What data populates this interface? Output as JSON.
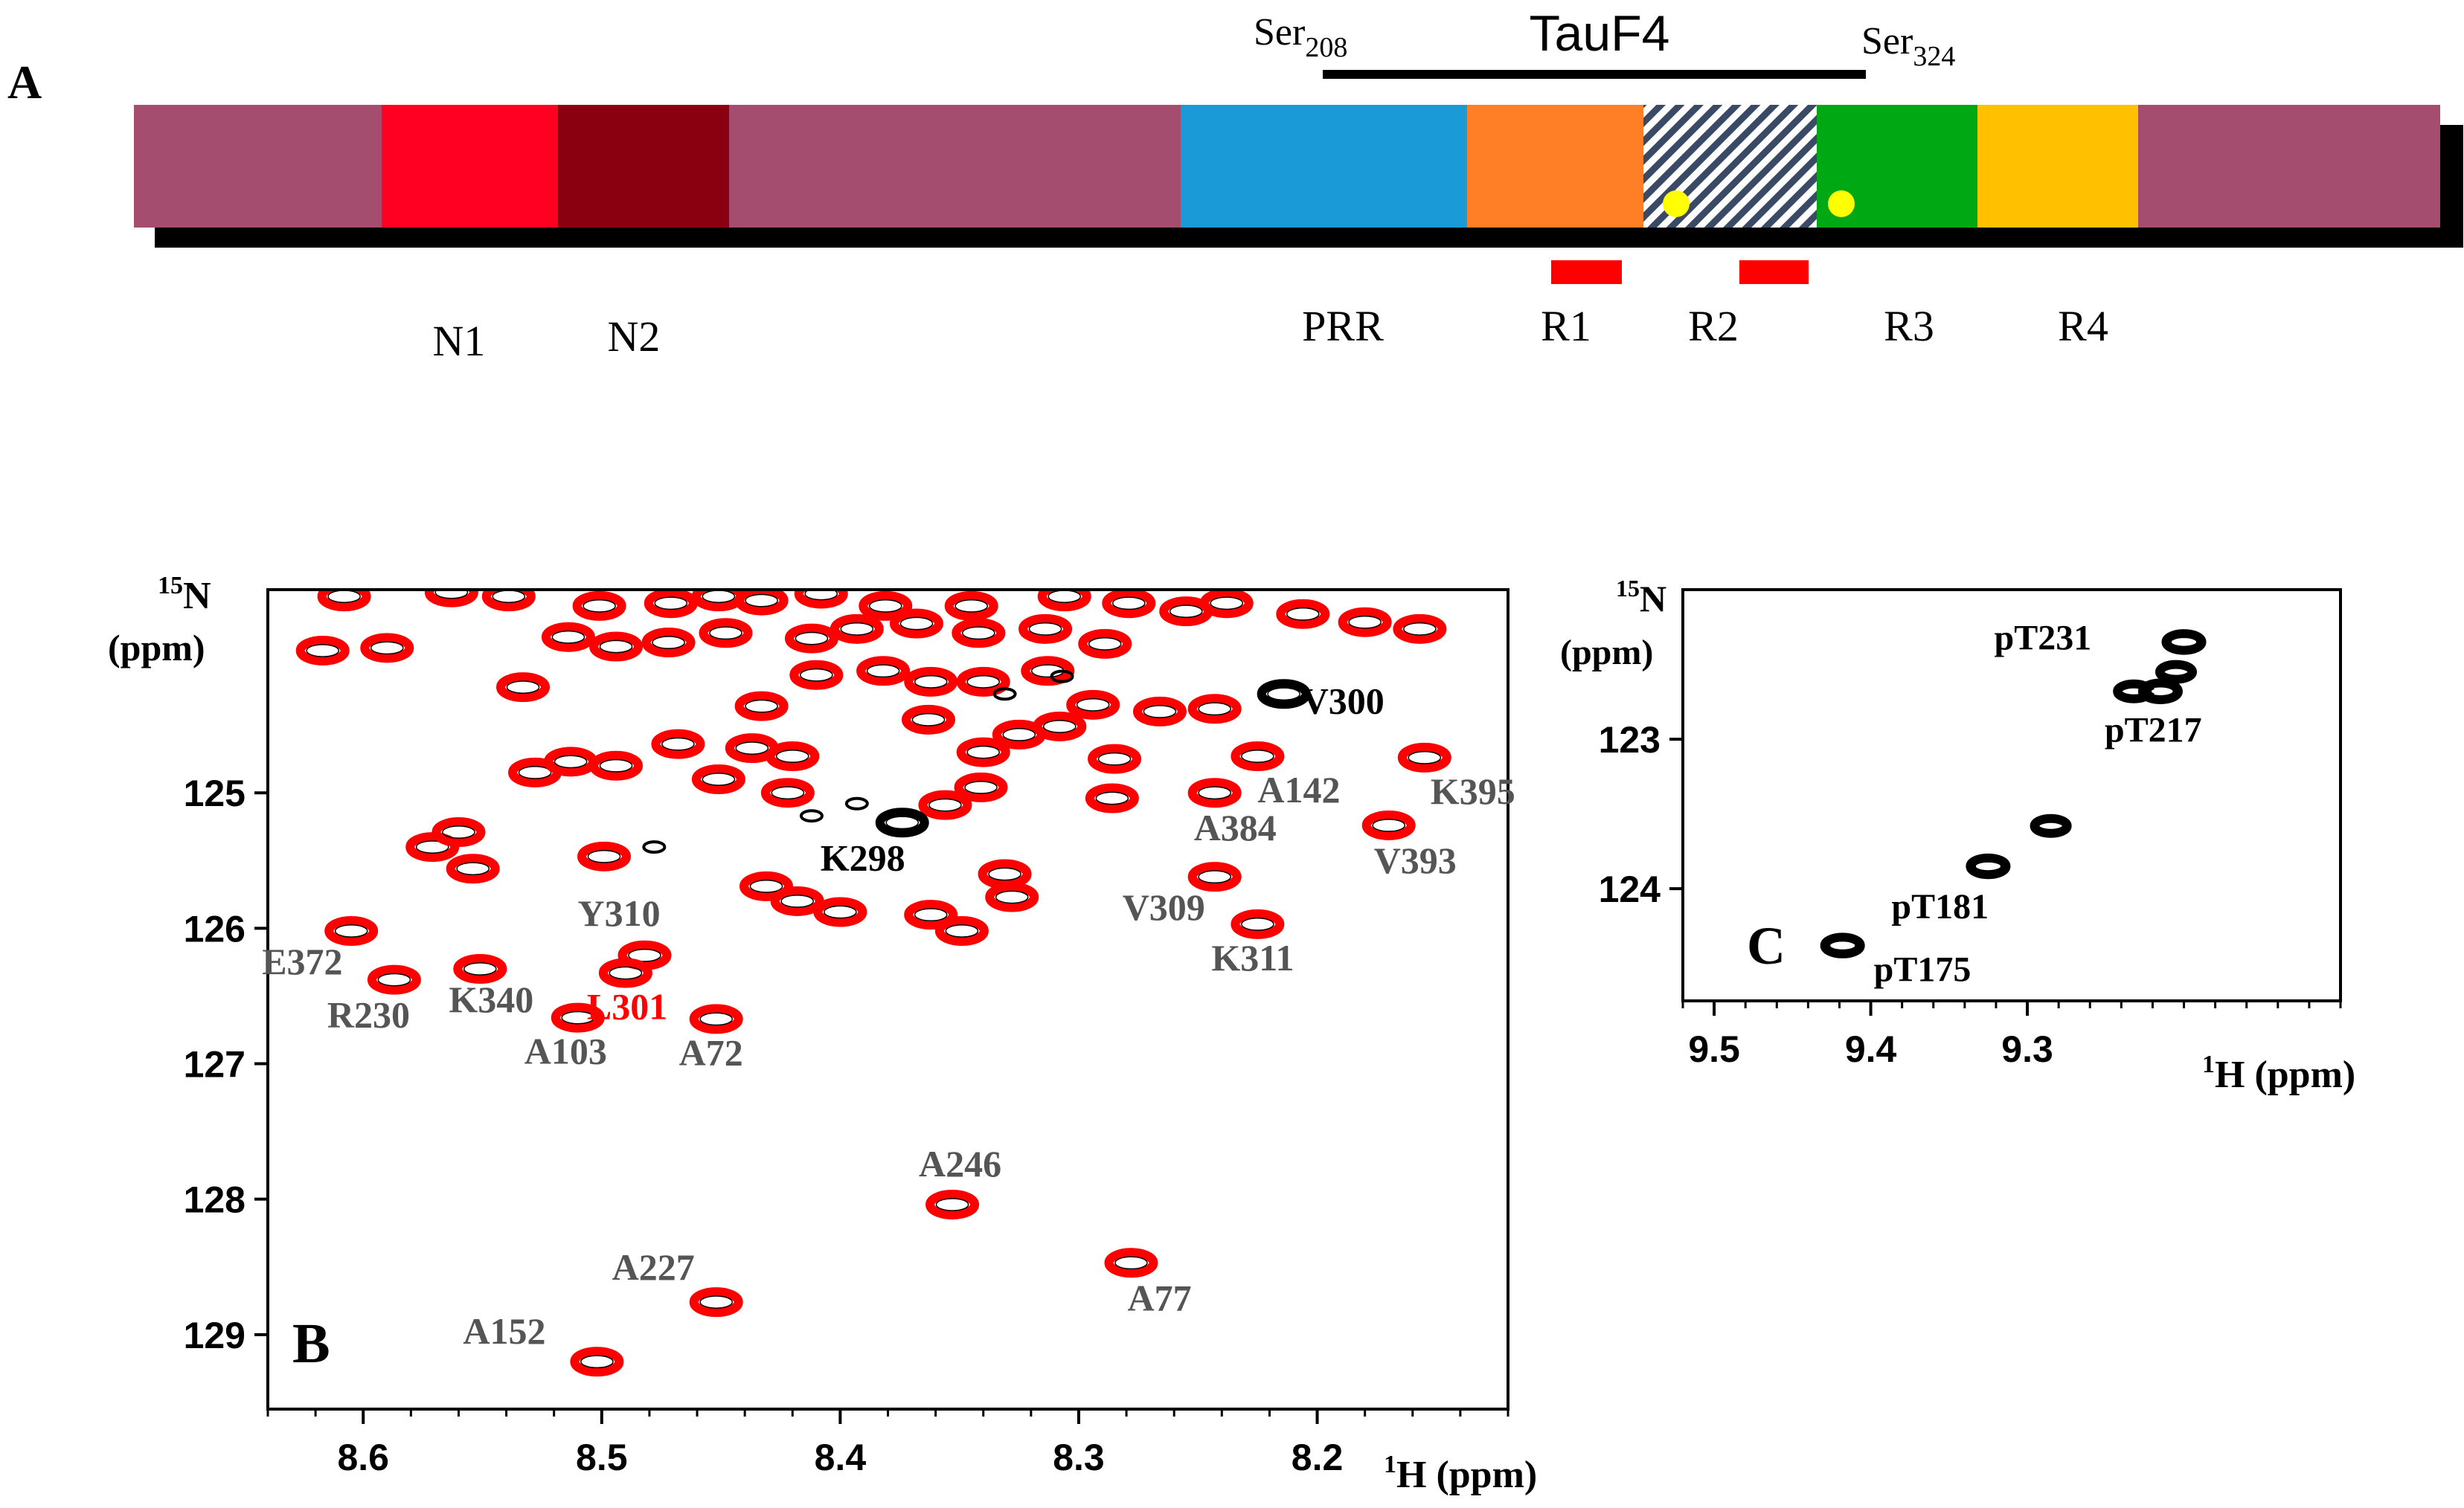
{
  "panel_a": {
    "panel_label": "A",
    "construct_label": "TauF4",
    "start_marker": {
      "base": "Ser",
      "sub": "208"
    },
    "end_marker": {
      "base": "Ser",
      "sub": "324"
    },
    "bar_color": "#a44d6f",
    "domains": [
      {
        "id": "N1",
        "label": "N1",
        "color": "#ff0022"
      },
      {
        "id": "N2",
        "label": "N2",
        "color": "#8b0011"
      },
      {
        "id": "PRR",
        "label": "PRR",
        "color": "#1a9ad6"
      },
      {
        "id": "R1",
        "label": "R1",
        "color": "#ff7f27"
      },
      {
        "id": "R2",
        "label": "R2",
        "color": "hatched"
      },
      {
        "id": "R3",
        "label": "R3",
        "color": "#00a814"
      },
      {
        "id": "R4",
        "label": "R4",
        "color": "#ffc000"
      }
    ],
    "motif_marker_color": "#ff0000",
    "site_dot_color": "#ffff00"
  },
  "chart_data": [
    {
      "type": "scatter",
      "panel_label": "B",
      "title": "",
      "xlabel": {
        "sup": "1",
        "base": "H (ppm)"
      },
      "ylabel": {
        "sup": "15",
        "base": "N",
        "unit": "(ppm)"
      },
      "xlim": [
        8.64,
        8.12
      ],
      "ylim": [
        123.5,
        129.55
      ],
      "x_ticks": [
        8.6,
        8.5,
        8.4,
        8.3,
        8.2
      ],
      "y_ticks": [
        125,
        126,
        127,
        128,
        129
      ],
      "grid": false,
      "series": [
        {
          "color": "#ff0000"
        },
        {
          "color": "#000000"
        }
      ],
      "peaks": [
        {
          "label": "V300",
          "x": 8.214,
          "y": 124.27,
          "color": "#000000",
          "label_color": "#000000"
        },
        {
          "label": "K298",
          "x": 8.374,
          "y": 125.22,
          "color": "#000000",
          "label_color": "#000000"
        },
        {
          "label": "A142",
          "x": 8.225,
          "y": 124.73,
          "color": "#ff0000",
          "label_color": "#555555"
        },
        {
          "label": "K395",
          "x": 8.155,
          "y": 124.74,
          "color": "#ff0000",
          "label_color": "#555555"
        },
        {
          "label": "A384",
          "x": 8.243,
          "y": 125.0,
          "color": "#ff0000",
          "label_color": "#555555"
        },
        {
          "label": "V393",
          "x": 8.17,
          "y": 125.24,
          "color": "#ff0000",
          "label_color": "#555555"
        },
        {
          "label": "V309",
          "x": 8.243,
          "y": 125.62,
          "color": "#ff0000",
          "label_color": "#555555"
        },
        {
          "label": "K311",
          "x": 8.225,
          "y": 125.97,
          "color": "#ff0000",
          "label_color": "#555555"
        },
        {
          "label": "Y310",
          "x": 8.482,
          "y": 126.2,
          "color": "#ff0000",
          "label_color": "#555555"
        },
        {
          "label": "L301",
          "x": 8.49,
          "y": 126.33,
          "color": "#ff0000",
          "label_color": "#ff0000"
        },
        {
          "label": "E372",
          "x": 8.605,
          "y": 126.02,
          "color": "#ff0000",
          "label_color": "#555555"
        },
        {
          "label": "R230",
          "x": 8.587,
          "y": 126.38,
          "color": "#ff0000",
          "label_color": "#555555"
        },
        {
          "label": "K340",
          "x": 8.551,
          "y": 126.3,
          "color": "#ff0000",
          "label_color": "#555555"
        },
        {
          "label": "A103",
          "x": 8.51,
          "y": 126.66,
          "color": "#ff0000",
          "label_color": "#555555"
        },
        {
          "label": "A72",
          "x": 8.452,
          "y": 126.67,
          "color": "#ff0000",
          "label_color": "#555555"
        },
        {
          "label": "A246",
          "x": 8.353,
          "y": 128.04,
          "color": "#ff0000",
          "label_color": "#555555"
        },
        {
          "label": "A227",
          "x": 8.452,
          "y": 128.76,
          "color": "#ff0000",
          "label_color": "#555555"
        },
        {
          "label": "A77",
          "x": 8.278,
          "y": 128.47,
          "color": "#ff0000",
          "label_color": "#555555"
        },
        {
          "label": "A152",
          "x": 8.502,
          "y": 129.2,
          "color": "#ff0000",
          "label_color": "#555555"
        }
      ],
      "unassigned_peaks": [
        {
          "x": 8.608,
          "y": 123.55
        },
        {
          "x": 8.563,
          "y": 123.52
        },
        {
          "x": 8.539,
          "y": 123.55
        },
        {
          "x": 8.501,
          "y": 123.62
        },
        {
          "x": 8.471,
          "y": 123.6
        },
        {
          "x": 8.451,
          "y": 123.55
        },
        {
          "x": 8.433,
          "y": 123.58
        },
        {
          "x": 8.408,
          "y": 123.53
        },
        {
          "x": 8.381,
          "y": 123.62
        },
        {
          "x": 8.345,
          "y": 123.62
        },
        {
          "x": 8.306,
          "y": 123.55
        },
        {
          "x": 8.279,
          "y": 123.6
        },
        {
          "x": 8.255,
          "y": 123.66
        },
        {
          "x": 8.238,
          "y": 123.6
        },
        {
          "x": 8.206,
          "y": 123.68
        },
        {
          "x": 8.18,
          "y": 123.74
        },
        {
          "x": 8.157,
          "y": 123.79
        },
        {
          "x": 8.617,
          "y": 123.95
        },
        {
          "x": 8.59,
          "y": 123.93
        },
        {
          "x": 8.514,
          "y": 123.85
        },
        {
          "x": 8.494,
          "y": 123.92
        },
        {
          "x": 8.472,
          "y": 123.89
        },
        {
          "x": 8.448,
          "y": 123.82
        },
        {
          "x": 8.412,
          "y": 123.86
        },
        {
          "x": 8.393,
          "y": 123.79
        },
        {
          "x": 8.368,
          "y": 123.75
        },
        {
          "x": 8.342,
          "y": 123.82
        },
        {
          "x": 8.314,
          "y": 123.79
        },
        {
          "x": 8.289,
          "y": 123.9
        },
        {
          "x": 8.533,
          "y": 124.22
        },
        {
          "x": 8.41,
          "y": 124.13
        },
        {
          "x": 8.382,
          "y": 124.1
        },
        {
          "x": 8.362,
          "y": 124.18
        },
        {
          "x": 8.34,
          "y": 124.18
        },
        {
          "x": 8.313,
          "y": 124.1
        },
        {
          "x": 8.294,
          "y": 124.35
        },
        {
          "x": 8.266,
          "y": 124.4
        },
        {
          "x": 8.243,
          "y": 124.38
        },
        {
          "x": 8.433,
          "y": 124.36
        },
        {
          "x": 8.363,
          "y": 124.46
        },
        {
          "x": 8.528,
          "y": 124.85
        },
        {
          "x": 8.513,
          "y": 124.77
        },
        {
          "x": 8.494,
          "y": 124.8
        },
        {
          "x": 8.468,
          "y": 124.64
        },
        {
          "x": 8.451,
          "y": 124.9
        },
        {
          "x": 8.437,
          "y": 124.67
        },
        {
          "x": 8.42,
          "y": 124.73
        },
        {
          "x": 8.422,
          "y": 125.0
        },
        {
          "x": 8.34,
          "y": 124.7
        },
        {
          "x": 8.325,
          "y": 124.57
        },
        {
          "x": 8.308,
          "y": 124.51
        },
        {
          "x": 8.285,
          "y": 124.75
        },
        {
          "x": 8.341,
          "y": 124.96
        },
        {
          "x": 8.286,
          "y": 125.04
        },
        {
          "x": 8.356,
          "y": 125.09
        },
        {
          "x": 8.571,
          "y": 125.4
        },
        {
          "x": 8.56,
          "y": 125.29
        },
        {
          "x": 8.554,
          "y": 125.56
        },
        {
          "x": 8.499,
          "y": 125.47
        },
        {
          "x": 8.431,
          "y": 125.69
        },
        {
          "x": 8.418,
          "y": 125.8
        },
        {
          "x": 8.4,
          "y": 125.88
        },
        {
          "x": 8.362,
          "y": 125.9
        },
        {
          "x": 8.349,
          "y": 126.02
        },
        {
          "x": 8.331,
          "y": 125.6
        },
        {
          "x": 8.328,
          "y": 125.77
        }
      ],
      "faint_peaks": [
        {
          "x": 8.478,
          "y": 125.4
        },
        {
          "x": 8.393,
          "y": 125.08
        },
        {
          "x": 8.412,
          "y": 125.17
        },
        {
          "x": 8.307,
          "y": 124.14
        },
        {
          "x": 8.331,
          "y": 124.27
        }
      ]
    },
    {
      "type": "scatter",
      "panel_label": "C",
      "title": "",
      "xlabel": {
        "sup": "1",
        "base": "H (ppm)"
      },
      "ylabel": {
        "sup": "15",
        "base": "N",
        "unit": "(ppm)"
      },
      "xlim": [
        9.52,
        9.1
      ],
      "ylim": [
        122.0,
        124.75
      ],
      "x_ticks": [
        9.5,
        9.4,
        9.3
      ],
      "y_ticks": [
        123,
        124
      ],
      "grid": false,
      "series": [
        {
          "color": "#000000"
        }
      ],
      "peaks": [
        {
          "label": "pT231",
          "x": 9.2,
          "y": 122.35,
          "color": "#000000",
          "label_color": "#000000"
        },
        {
          "label": "pT217",
          "x": 9.215,
          "y": 122.68,
          "color": "#000000",
          "label_color": "#000000"
        },
        {
          "label": "pT181",
          "x": 9.325,
          "y": 123.85,
          "color": "#000000",
          "label_color": "#000000"
        },
        {
          "label": "pT175",
          "x": 9.418,
          "y": 124.38,
          "color": "#000000",
          "label_color": "#000000"
        }
      ],
      "extra_peaks": [
        {
          "x": 9.205,
          "y": 122.55
        },
        {
          "x": 9.285,
          "y": 123.58
        },
        {
          "x": 9.232,
          "y": 122.68
        }
      ]
    }
  ]
}
